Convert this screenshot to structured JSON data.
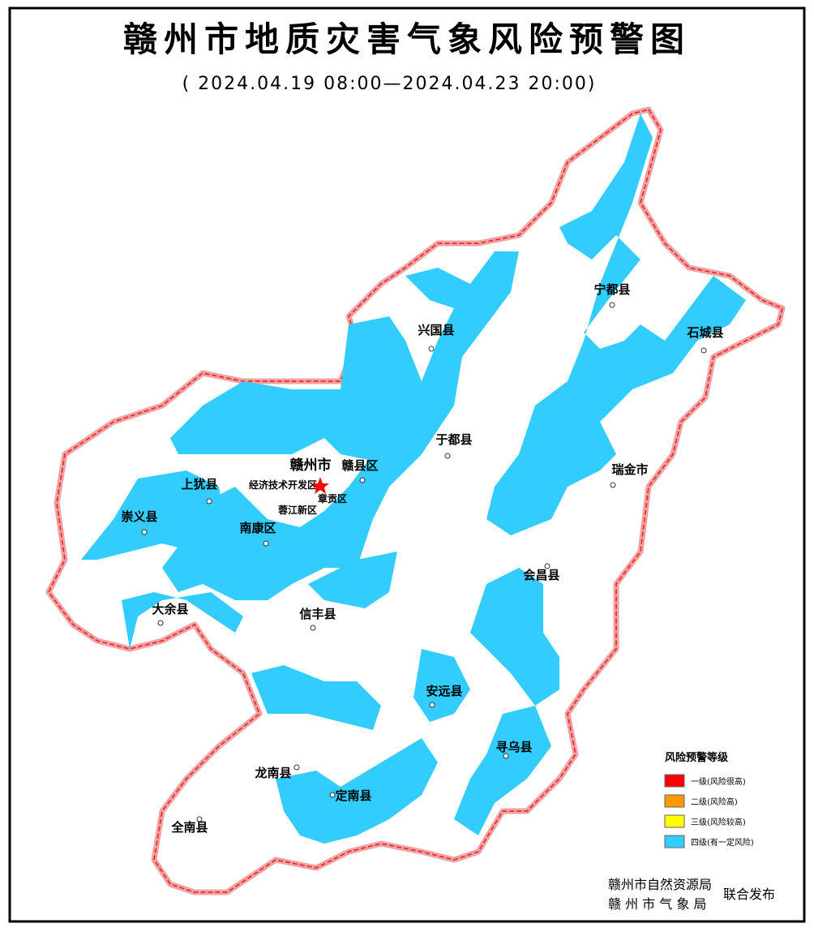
{
  "title": "赣州市地质灾害气象风险预警图",
  "subtitle": "( 2024.04.19 08:00—2024.04.23 20:00)",
  "places": [
    "宁都县",
    "石城县",
    "兴国县",
    "于都县",
    "瑞金市",
    "赣州市",
    "赣县区",
    "经济技术开发区",
    "章贡区",
    "蓉江新区",
    "上犹县",
    "崇义县",
    "南康区",
    "会昌县",
    "大余县",
    "信丰县",
    "安远县",
    "寻乌县",
    "龙南县",
    "定南县",
    "全南县"
  ],
  "legend": {
    "title": "风险预警等级",
    "items": [
      {
        "label": "一级(风险很高)",
        "color": "#ff0000"
      },
      {
        "label": "二级(风险高)",
        "color": "#ff9900"
      },
      {
        "label": "三级(风险较高)",
        "color": "#ffff00"
      },
      {
        "label": "四级(有一定风险)",
        "color": "#33ccff"
      }
    ]
  },
  "publishers": [
    "赣州市自然资源局",
    "赣 州 市 气 象 局"
  ],
  "joint": "联合发布"
}
